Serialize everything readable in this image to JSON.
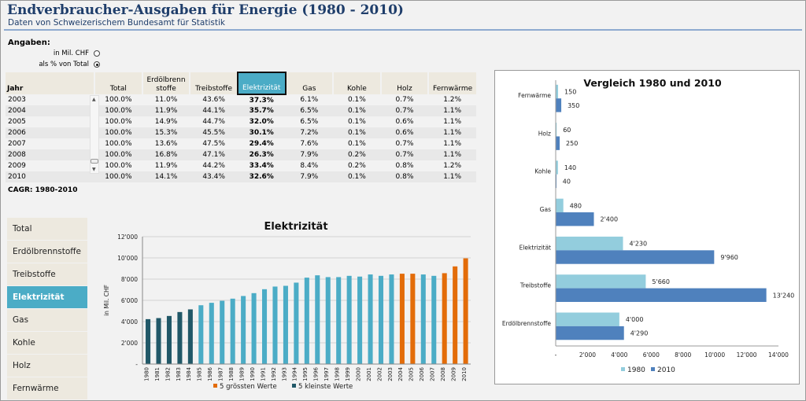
{
  "header": {
    "title": "Endverbraucher-Ausgaben für Energie (1980 - 2010)",
    "subtitle": "Daten von Schweizerischem Bundesamt für Statistik"
  },
  "options": {
    "label": "Angaben:",
    "opt1": "in Mil. CHF",
    "opt1_selected": false,
    "opt2": "als % von Total",
    "opt2_selected": true
  },
  "table": {
    "columns": [
      "Jahr",
      "Total",
      "Erdölbrenn stoffe",
      "Treibstoffe",
      "Elektrizität",
      "Gas",
      "Kohle",
      "Holz",
      "Fernwärme"
    ],
    "selected_column": "Elektrizität",
    "rows": [
      [
        "2003",
        "100.0%",
        "11.0%",
        "43.6%",
        "37.3%",
        "6.1%",
        "0.1%",
        "0.7%",
        "1.2%"
      ],
      [
        "2004",
        "100.0%",
        "11.9%",
        "44.1%",
        "35.7%",
        "6.5%",
        "0.1%",
        "0.7%",
        "1.1%"
      ],
      [
        "2005",
        "100.0%",
        "14.9%",
        "44.7%",
        "32.0%",
        "6.5%",
        "0.1%",
        "0.6%",
        "1.1%"
      ],
      [
        "2006",
        "100.0%",
        "15.3%",
        "45.5%",
        "30.1%",
        "7.2%",
        "0.1%",
        "0.6%",
        "1.1%"
      ],
      [
        "2007",
        "100.0%",
        "13.6%",
        "47.5%",
        "29.4%",
        "7.6%",
        "0.1%",
        "0.7%",
        "1.1%"
      ],
      [
        "2008",
        "100.0%",
        "16.8%",
        "47.1%",
        "26.3%",
        "7.9%",
        "0.2%",
        "0.7%",
        "1.1%"
      ],
      [
        "2009",
        "100.0%",
        "11.9%",
        "44.2%",
        "33.4%",
        "8.4%",
        "0.2%",
        "0.8%",
        "1.2%"
      ],
      [
        "2010",
        "100.0%",
        "14.1%",
        "43.4%",
        "32.6%",
        "7.9%",
        "0.1%",
        "0.8%",
        "1.1%"
      ]
    ],
    "footer": "CAGR: 1980-2010"
  },
  "buttons": [
    {
      "label": "Total"
    },
    {
      "label": "Erdölbrennstoffe"
    },
    {
      "label": "Treibstoffe"
    },
    {
      "label": "Elektrizität",
      "active": true
    },
    {
      "label": "Gas"
    },
    {
      "label": "Kohle"
    },
    {
      "label": "Holz"
    },
    {
      "label": "Fernwärme"
    }
  ],
  "chart_data": [
    {
      "type": "bar",
      "title": "Elektrizität",
      "ylabel": "in Mil. CHF",
      "ylim": [
        0,
        12000
      ],
      "yticks": [
        "-",
        "2'000",
        "4'000",
        "6'000",
        "8'000",
        "10'000",
        "12'000"
      ],
      "grid": true,
      "legend": "bottom",
      "categories": [
        "1980",
        "1981",
        "1982",
        "1983",
        "1984",
        "1985",
        "1986",
        "1987",
        "1988",
        "1989",
        "1990",
        "1991",
        "1992",
        "1993",
        "1994",
        "1995",
        "1996",
        "1997",
        "1998",
        "1999",
        "2000",
        "2001",
        "2002",
        "2003",
        "2004",
        "2005",
        "2006",
        "2007",
        "2008",
        "2009",
        "2010"
      ],
      "values": [
        4230,
        4330,
        4530,
        4900,
        5150,
        5540,
        5770,
        5960,
        6160,
        6410,
        6680,
        7050,
        7300,
        7370,
        7670,
        8140,
        8360,
        8190,
        8190,
        8310,
        8240,
        8440,
        8310,
        8440,
        8510,
        8510,
        8440,
        8310,
        8560,
        9200,
        9960
      ],
      "groups": [
        "min",
        "min",
        "min",
        "min",
        "min",
        "n",
        "n",
        "n",
        "n",
        "n",
        "n",
        "n",
        "n",
        "n",
        "n",
        "n",
        "n",
        "n",
        "n",
        "n",
        "n",
        "n",
        "n",
        "n",
        "max",
        "max",
        "n",
        "n",
        "max",
        "max",
        "max"
      ],
      "legend_entries": [
        {
          "name": "5 grössten Werte",
          "key": "max"
        },
        {
          "name": "5 kleinste Werte",
          "key": "min"
        }
      ],
      "colors": {
        "n": "#4bacc6",
        "max": "#e36c09",
        "min": "#215868"
      }
    },
    {
      "type": "bar",
      "orientation": "horizontal",
      "title": "Vergleich 1980 und 2010",
      "xlim": [
        0,
        14000
      ],
      "legend": "bottom",
      "xticks": [
        "-",
        "2'000",
        "4'000",
        "6'000",
        "8'000",
        "10'000",
        "12'000",
        "14'000"
      ],
      "categories": [
        "Fernwärme",
        "Holz",
        "Kohle",
        "Gas",
        "Elektrizität",
        "Treibstoffe",
        "Erdölbrennstoffe"
      ],
      "series": [
        {
          "name": "1980",
          "values": [
            150,
            60,
            140,
            480,
            4230,
            5660,
            4000
          ],
          "labels": [
            "150",
            "60",
            "140",
            "480",
            "4'230",
            "5'660",
            "4'000"
          ],
          "color": "#93cddd"
        },
        {
          "name": "2010",
          "values": [
            350,
            250,
            40,
            2400,
            9960,
            13240,
            4290
          ],
          "labels": [
            "350",
            "250",
            "40",
            "2'400",
            "9'960",
            "13'240",
            "4'290"
          ],
          "color": "#4f81bd"
        }
      ]
    }
  ]
}
